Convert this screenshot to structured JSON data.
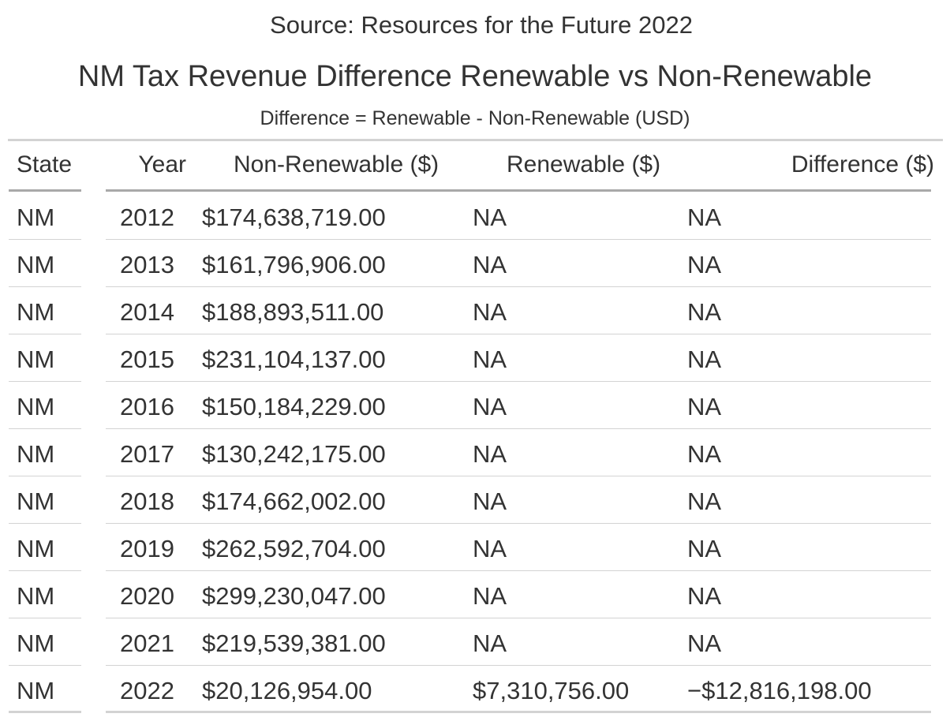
{
  "source_note": "Source: Resources for the Future 2022",
  "title": "NM Tax Revenue Difference Renewable vs Non-Renewable",
  "subtitle": "Difference = Renewable - Non-Renewable (USD)",
  "columns": {
    "state": "State",
    "year": "Year",
    "non_renewable": "Non-Renewable ($)",
    "renewable": "Renewable ($)",
    "difference": "Difference ($)"
  },
  "chart_data": {
    "type": "table",
    "title": "NM Tax Revenue Difference Renewable vs Non-Renewable",
    "subtitle": "Difference = Renewable - Non-Renewable (USD)",
    "caption": "Source: Resources for the Future 2022",
    "columns": [
      "State",
      "Year",
      "Non-Renewable ($)",
      "Renewable ($)",
      "Difference ($)"
    ],
    "rows": [
      {
        "state": "NM",
        "year": "2012",
        "non_renewable": "$174,638,719.00",
        "renewable": "NA",
        "difference": "NA"
      },
      {
        "state": "NM",
        "year": "2013",
        "non_renewable": "$161,796,906.00",
        "renewable": "NA",
        "difference": "NA"
      },
      {
        "state": "NM",
        "year": "2014",
        "non_renewable": "$188,893,511.00",
        "renewable": "NA",
        "difference": "NA"
      },
      {
        "state": "NM",
        "year": "2015",
        "non_renewable": "$231,104,137.00",
        "renewable": "NA",
        "difference": "NA"
      },
      {
        "state": "NM",
        "year": "2016",
        "non_renewable": "$150,184,229.00",
        "renewable": "NA",
        "difference": "NA"
      },
      {
        "state": "NM",
        "year": "2017",
        "non_renewable": "$130,242,175.00",
        "renewable": "NA",
        "difference": "NA"
      },
      {
        "state": "NM",
        "year": "2018",
        "non_renewable": "$174,662,002.00",
        "renewable": "NA",
        "difference": "NA"
      },
      {
        "state": "NM",
        "year": "2019",
        "non_renewable": "$262,592,704.00",
        "renewable": "NA",
        "difference": "NA"
      },
      {
        "state": "NM",
        "year": "2020",
        "non_renewable": "$299,230,047.00",
        "renewable": "NA",
        "difference": "NA"
      },
      {
        "state": "NM",
        "year": "2021",
        "non_renewable": "$219,539,381.00",
        "renewable": "NA",
        "difference": "NA"
      },
      {
        "state": "NM",
        "year": "2022",
        "non_renewable": "$20,126,954.00",
        "renewable": "$7,310,756.00",
        "difference": "−$12,816,198.00"
      }
    ]
  }
}
